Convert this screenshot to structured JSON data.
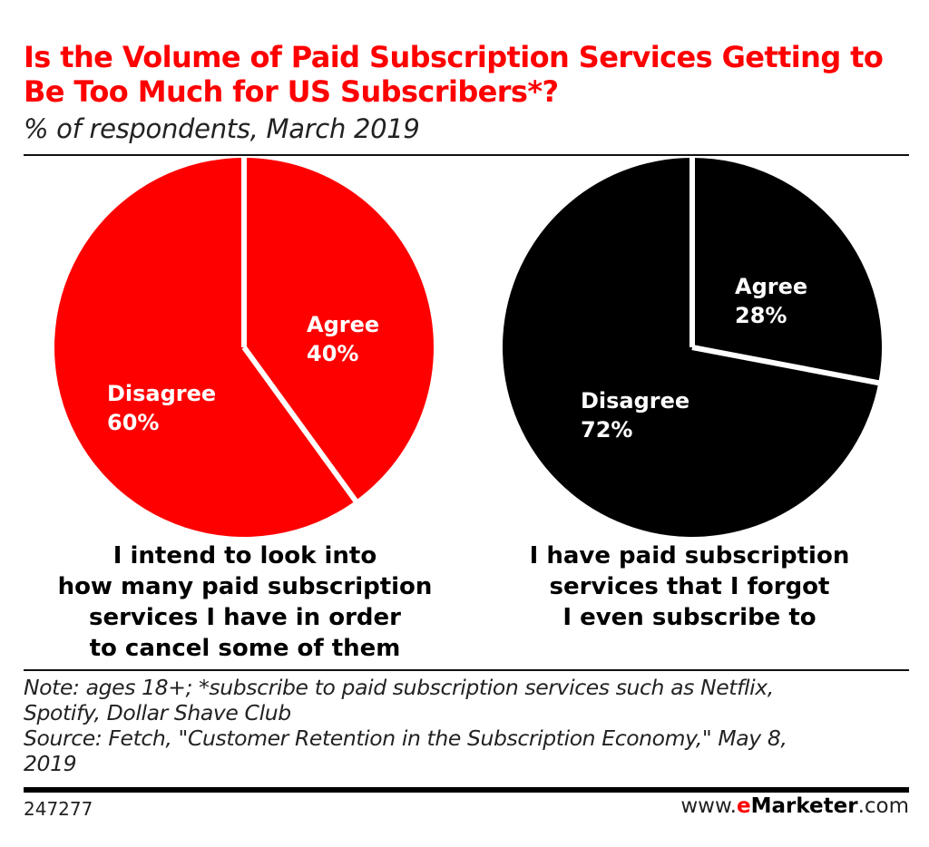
{
  "title": "Is the Volume of Paid Subscription Services Getting to Be Too Much for US Subscribers*?",
  "subtitle": "% of respondents, March 2019",
  "colors": {
    "red": "#ff0000",
    "black": "#000000",
    "white": "#ffffff"
  },
  "chart_data": [
    {
      "type": "pie",
      "caption": "I intend to look into how many paid subscription services I have in order to cancel some of them",
      "caption_lines": [
        "I intend to look into",
        "how many paid subscription",
        "services I have in order",
        "to cancel some of them"
      ],
      "slices": [
        {
          "label": "Agree",
          "value": 40,
          "value_label": "40%"
        },
        {
          "label": "Disagree",
          "value": 60,
          "value_label": "60%"
        }
      ],
      "color": "#ff0000"
    },
    {
      "type": "pie",
      "caption": "I have paid subscription services that I forgot I even subscribe to",
      "caption_lines": [
        "I have paid subscription",
        "services that I forgot",
        "I even subscribe to"
      ],
      "slices": [
        {
          "label": "Agree",
          "value": 28,
          "value_label": "28%"
        },
        {
          "label": "Disagree",
          "value": 72,
          "value_label": "72%"
        }
      ],
      "color": "#000000"
    }
  ],
  "note": {
    "line1": "Note: ages 18+; *subscribe to paid subscription services such as Netflix,",
    "line2": "Spotify, Dollar Shave Club",
    "line3": "Source: Fetch, \"Customer Retention in the Subscription Economy,\" May 8,",
    "line4": "2019"
  },
  "footer": {
    "chart_id": "247277",
    "site_prefix": "www.",
    "site_e": "e",
    "site_brand": "Marketer",
    "site_suffix": ".com"
  }
}
